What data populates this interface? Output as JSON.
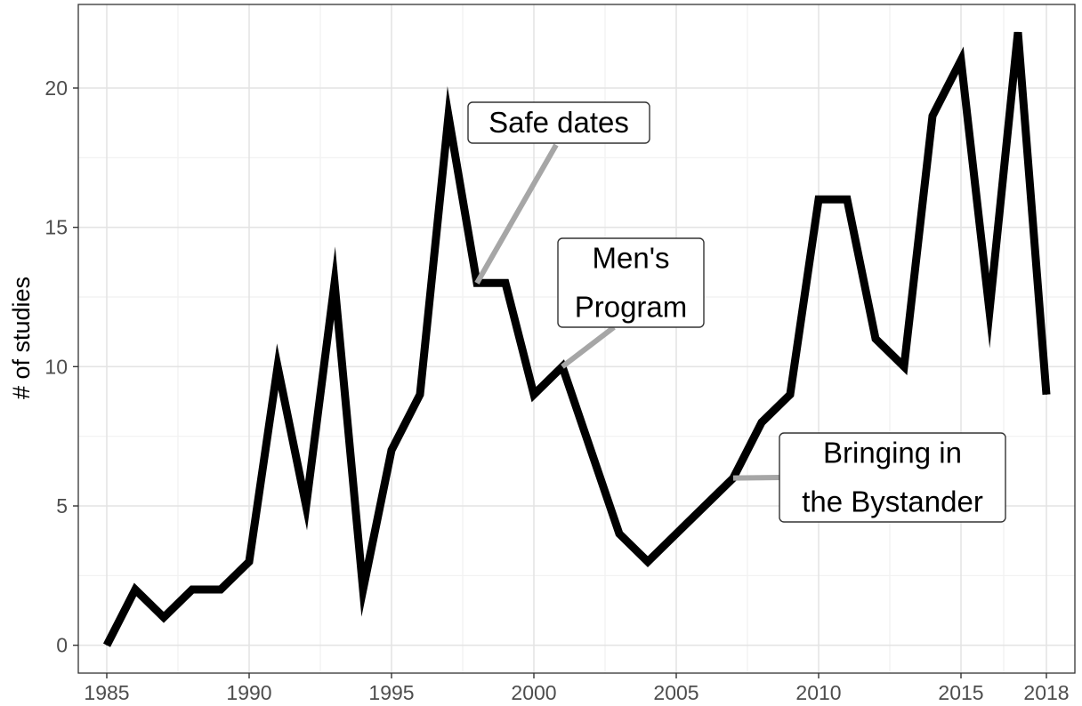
{
  "chart_data": {
    "type": "line",
    "title": "",
    "xlabel": "",
    "ylabel": "# of studies",
    "xlim": [
      1984,
      2019
    ],
    "ylim": [
      -1,
      23
    ],
    "x_ticks": [
      1985,
      1990,
      1995,
      2000,
      2005,
      2010,
      2015,
      2018
    ],
    "x_tick_labels": [
      "1985",
      "1990",
      "1995",
      "2000",
      "2005",
      "2010",
      "2015",
      "2018"
    ],
    "y_ticks": [
      0,
      5,
      10,
      15,
      20
    ],
    "y_tick_labels": [
      "0",
      "5",
      "10",
      "15",
      "20"
    ],
    "grid": true,
    "legend": "none",
    "series": [
      {
        "color": "#000000",
        "x": [
          1985,
          1986,
          1987,
          1988,
          1989,
          1990,
          1991,
          1992,
          1993,
          1994,
          1995,
          1996,
          1997,
          1998,
          1999,
          2000,
          2001,
          2002,
          2003,
          2004,
          2005,
          2006,
          2007,
          2008,
          2009,
          2010,
          2011,
          2012,
          2013,
          2014,
          2015,
          2016,
          2017,
          2018
        ],
        "y": [
          0,
          2,
          1,
          2,
          2,
          3,
          10,
          5,
          13,
          2,
          7,
          9,
          19,
          13,
          13,
          9,
          10,
          7,
          4,
          3,
          4,
          5,
          6,
          8,
          9,
          16,
          16,
          11,
          10,
          19,
          21,
          12,
          22,
          9
        ]
      }
    ],
    "annotations": [
      {
        "lines": [
          "Safe dates"
        ],
        "x": 1998,
        "y": 13
      },
      {
        "lines": [
          "Men's",
          "Program"
        ],
        "x": 2001,
        "y": 10
      },
      {
        "lines": [
          "Bringing in",
          "the Bystander"
        ],
        "x": 2007,
        "y": 6
      }
    ]
  }
}
